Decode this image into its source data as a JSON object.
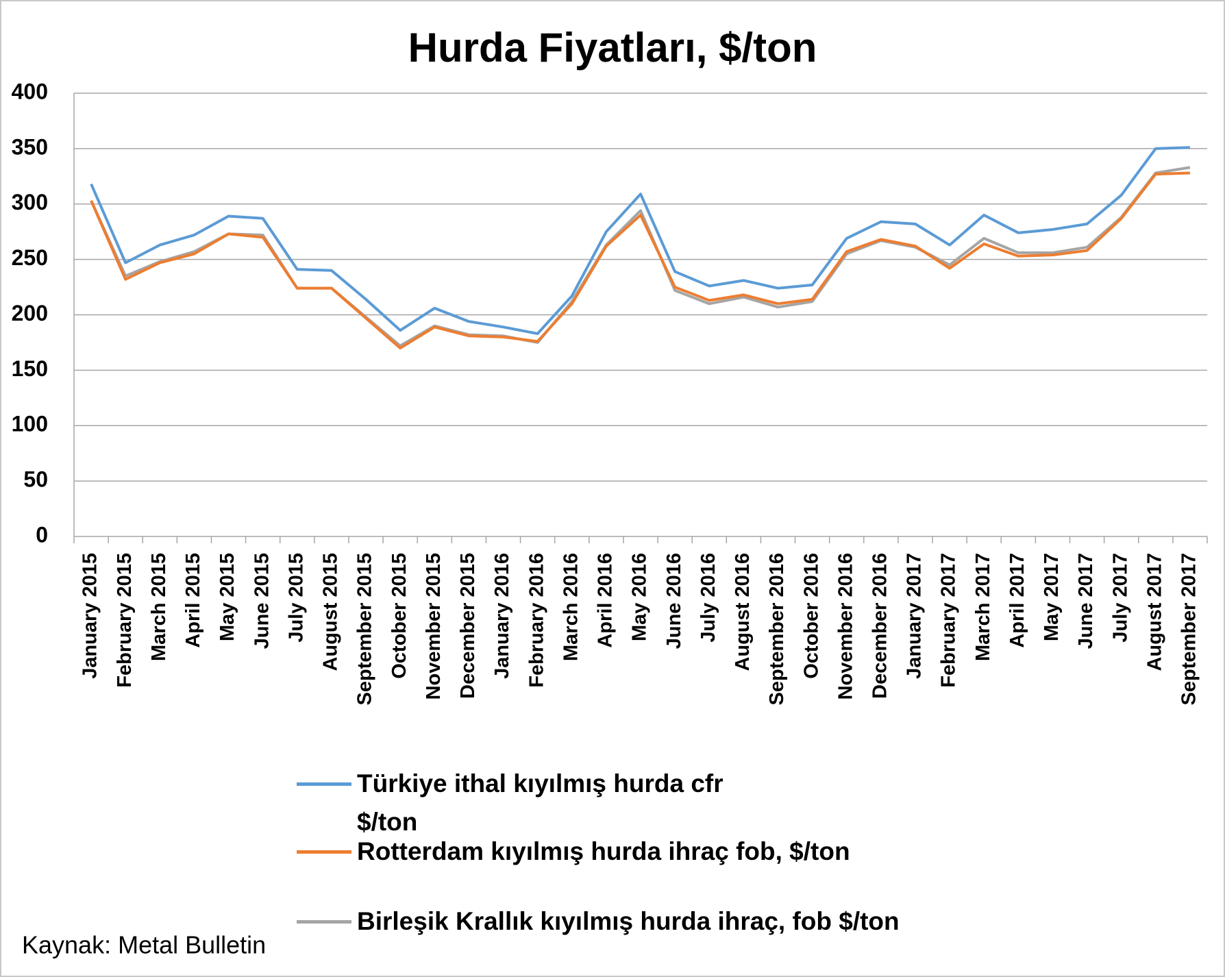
{
  "chart_data": {
    "type": "line",
    "title": "Hurda Fiyatları, $/ton",
    "categories": [
      "January 2015",
      "February 2015",
      "March 2015",
      "April 2015",
      "May 2015",
      "June 2015",
      "July 2015",
      "August 2015",
      "September 2015",
      "October 2015",
      "November 2015",
      "December 2015",
      "January 2016",
      "February 2016",
      "March 2016",
      "April 2016",
      "May 2016",
      "June 2016",
      "July 2016",
      "August 2016",
      "September 2016",
      "October 2016",
      "November 2016",
      "December 2016",
      "January 2017",
      "February 2017",
      "March 2017",
      "April 2017",
      "May 2017",
      "June 2017",
      "July 2017",
      "August 2017",
      "September 2017"
    ],
    "series": [
      {
        "name": "Türkiye ithal kıyılmış hurda cfr $/ton",
        "color": "#5b9bd5",
        "values": [
          318,
          247,
          263,
          272,
          289,
          287,
          241,
          240,
          214,
          186,
          206,
          194,
          189,
          183,
          217,
          275,
          309,
          239,
          226,
          231,
          224,
          227,
          269,
          284,
          282,
          263,
          290,
          274,
          277,
          282,
          308,
          350,
          351
        ]
      },
      {
        "name": "Rotterdam kıyılmış hurda ihraç fob, $/ton",
        "color": "#ed7d31",
        "values": [
          303,
          232,
          247,
          255,
          273,
          270,
          224,
          224,
          197,
          170,
          189,
          181,
          180,
          176,
          210,
          262,
          290,
          225,
          213,
          218,
          210,
          214,
          257,
          268,
          262,
          242,
          264,
          253,
          254,
          258,
          287,
          327,
          328
        ]
      },
      {
        "name": "Birleşik Krallık kıyılmış hurda ihraç, fob $/ton",
        "color": "#a5a5a5",
        "values": [
          303,
          235,
          248,
          257,
          273,
          272,
          224,
          224,
          198,
          172,
          190,
          182,
          181,
          175,
          212,
          263,
          294,
          222,
          210,
          216,
          207,
          212,
          255,
          267,
          261,
          245,
          269,
          256,
          256,
          261,
          288,
          328,
          333
        ]
      }
    ],
    "ylim": [
      0,
      400
    ],
    "yticks": [
      0,
      50,
      100,
      150,
      200,
      250,
      300,
      350,
      400
    ],
    "grid": true,
    "source": "Kaynak: Metal Bulletin"
  }
}
